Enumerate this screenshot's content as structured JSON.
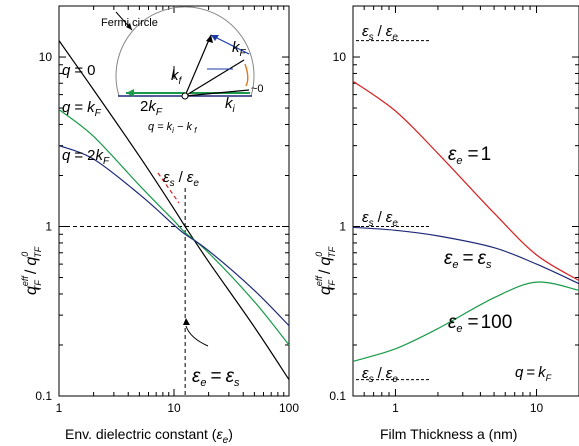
{
  "chart_data": [
    {
      "type": "line",
      "panel": "left",
      "xscale": "log",
      "yscale": "log",
      "xlim": [
        1,
        100
      ],
      "ylim": [
        0.1,
        20
      ],
      "xlabel": "Env.  dielectric constant (",
      "xlabel_symbol": "ε",
      "xlabel_sub": "e",
      "xlabel_close": ")",
      "ylabel_main": "q",
      "ylabel_sup1": "eff",
      "ylabel_sub1": "TF",
      "ylabel_slash": "/",
      "ylabel_sup2": "0",
      "ylabel_sub2": "TF",
      "xticks": [
        {
          "v": 1,
          "label": "1"
        },
        {
          "v": 10,
          "label": "10"
        },
        {
          "v": 100,
          "label": "100"
        }
      ],
      "yticks": [
        {
          "v": 0.1,
          "label": "0.1"
        },
        {
          "v": 1,
          "label": "1"
        },
        {
          "v": 10,
          "label": "10"
        }
      ],
      "series": [
        {
          "name": "q = 0",
          "color": "#000000",
          "x": [
            1,
            2,
            5,
            10,
            12.5,
            20,
            50,
            100
          ],
          "y": [
            12.5,
            6.4,
            2.6,
            1.27,
            1.0,
            0.62,
            0.255,
            0.125
          ]
        },
        {
          "name": "q = k_F",
          "color": "#1a9a4a",
          "x": [
            1,
            2,
            5,
            10,
            12.5,
            20,
            50,
            100
          ],
          "y": [
            4.9,
            3.4,
            1.75,
            1.08,
            0.92,
            0.7,
            0.36,
            0.2
          ]
        },
        {
          "name": "q = 2k_F",
          "color": "#1f2a78",
          "x": [
            1,
            2,
            5,
            10,
            12.5,
            20,
            50,
            100
          ],
          "y": [
            3.0,
            2.5,
            1.55,
            1.02,
            0.9,
            0.72,
            0.42,
            0.26
          ]
        }
      ],
      "labels": {
        "q0": {
          "q": "q",
          "eq": "=",
          "val": "0"
        },
        "qk": {
          "q": "q",
          "eq": "=",
          "k": "k",
          "sub": "F"
        },
        "q2k": {
          "q": "q",
          "eq": "=",
          "two": "2",
          "k": "k",
          "sub": "F"
        },
        "ratio": {
          "e1": "ε",
          "s1": "s",
          "slash": "/",
          "e2": "ε",
          "s2": "e"
        },
        "equal": {
          "e1": "ε",
          "s1": "e",
          "eq": "=",
          "e2": "ε",
          "s2": "s"
        }
      },
      "inset": {
        "title": "Fermi circle",
        "kf": "k",
        "kf_sub": "F",
        "kfi": "k",
        "kfi_sub": "f",
        "ki": "k",
        "ki_sub": "i",
        "two_kf": "2",
        "two_kf_k": "k",
        "two_kf_sub": "F",
        "approx": "~0",
        "formula": "q = k",
        "formula_sub_i": "i",
        "formula_mid": " − k",
        "formula_sub_f": " f"
      }
    },
    {
      "type": "line",
      "panel": "right",
      "xscale": "log",
      "yscale": "log",
      "xlim": [
        0.5,
        20
      ],
      "ylim": [
        0.1,
        20
      ],
      "xlabel": "Film Thickness a (nm)",
      "xticks": [
        {
          "v": 1,
          "label": "1"
        },
        {
          "v": 10,
          "label": "10"
        }
      ],
      "yticks": [
        {
          "v": 0.1,
          "label": "0.1"
        },
        {
          "v": 1,
          "label": "1"
        },
        {
          "v": 10,
          "label": "10"
        }
      ],
      "series": [
        {
          "name": "ε_e = 1",
          "color": "#d42020",
          "x": [
            0.5,
            1,
            2,
            5,
            10,
            20
          ],
          "y": [
            7.2,
            4.8,
            2.7,
            1.2,
            0.68,
            0.48
          ]
        },
        {
          "name": "ε_e = ε_s",
          "color": "#1f2a78",
          "x": [
            0.5,
            1,
            2,
            5,
            10,
            20
          ],
          "y": [
            0.99,
            0.95,
            0.88,
            0.75,
            0.6,
            0.46
          ]
        },
        {
          "name": "ε_e = 100",
          "color": "#1a9a4a",
          "x": [
            0.5,
            1,
            2,
            5,
            10,
            20
          ],
          "y": [
            0.16,
            0.19,
            0.25,
            0.38,
            0.47,
            0.42
          ]
        }
      ],
      "hlines": [
        {
          "y": 12.5
        },
        {
          "y": 1.0
        },
        {
          "y": 0.125
        }
      ],
      "labels": {
        "e1": {
          "e": "ε",
          "s": "e",
          "eq": "=",
          "val": "1"
        },
        "es": {
          "e": "ε",
          "s": "e",
          "eq": "=",
          "e2": "ε",
          "s2": "s"
        },
        "e100": {
          "e": "ε",
          "s": "e",
          "eq": "=",
          "val": "100"
        },
        "ratio": {
          "e1": "ε",
          "s1": "s",
          "slash": "/",
          "e2": "ε",
          "s2": "e"
        },
        "qkf": {
          "q": "q",
          "eq": "=",
          "k": "k",
          "sub": "F"
        }
      }
    }
  ]
}
